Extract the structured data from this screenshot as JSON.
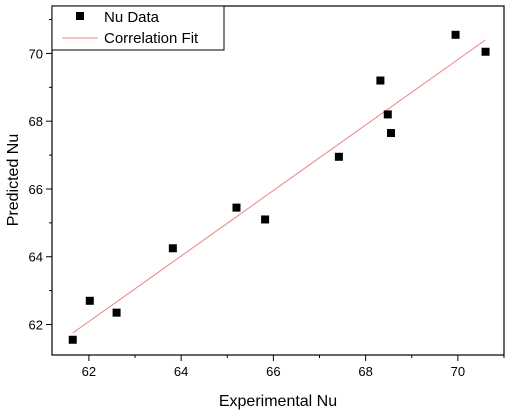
{
  "chart_data": {
    "type": "scatter",
    "title": "",
    "xlabel": "Experimental Nu",
    "ylabel": "Predicted Nu",
    "xlim": [
      61.2,
      71.0
    ],
    "ylim": [
      61.1,
      71.4
    ],
    "x_ticks": [
      62,
      64,
      66,
      68,
      70
    ],
    "y_ticks": [
      62,
      64,
      66,
      68,
      70
    ],
    "x_tick_labels": [
      "62",
      "64",
      "66",
      "68",
      "70"
    ],
    "y_tick_labels": [
      "62",
      "64",
      "66",
      "68",
      "70"
    ],
    "grid": false,
    "legend_position": "top-left",
    "series": [
      {
        "name": "Nu Data",
        "kind": "scatter",
        "marker": "square",
        "color": "#000000",
        "x": [
          61.65,
          62.02,
          62.6,
          63.82,
          65.2,
          65.82,
          67.42,
          68.32,
          68.48,
          68.55,
          69.95,
          70.6
        ],
        "y": [
          61.55,
          62.7,
          62.35,
          64.25,
          65.45,
          65.1,
          66.95,
          69.2,
          68.2,
          67.65,
          70.55,
          70.05
        ]
      },
      {
        "name": "Correlation Fit",
        "kind": "line",
        "color": "#f08080",
        "x": [
          61.65,
          70.6
        ],
        "y": [
          61.75,
          70.4
        ]
      }
    ]
  }
}
